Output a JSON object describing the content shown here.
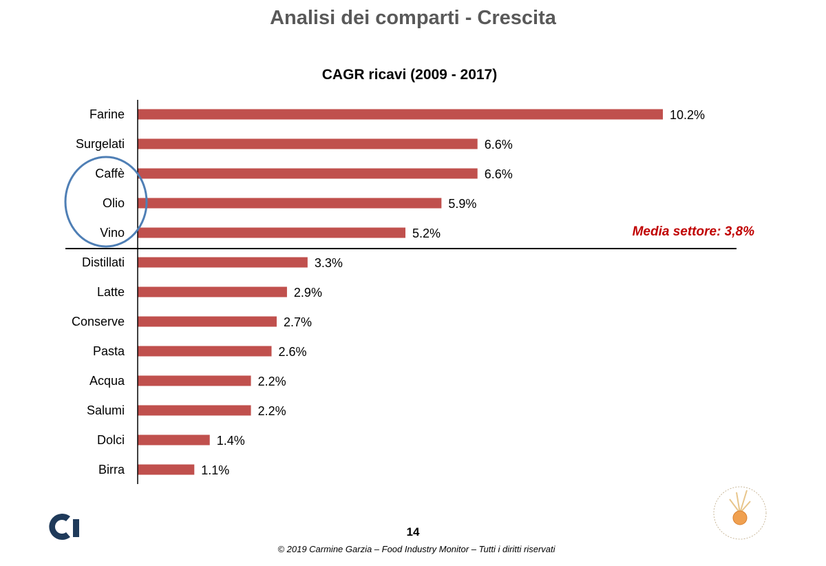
{
  "slide": {
    "title": "Analisi dei comparti - Crescita",
    "page_number": "14",
    "footer": "© 2019 Carmine Garzia – Food Industry Monitor – Tutti i diritti riservati",
    "annotation": "Media settore: 3,8%"
  },
  "colors": {
    "bar": "#c0504d",
    "annotation": "#c00000",
    "highlight_circle": "#4f7fb5",
    "logo_left": "#1f3a5a"
  },
  "chart_data": {
    "type": "bar",
    "orientation": "horizontal",
    "title": "CAGR ricavi (2009 - 2017)",
    "categories": [
      "Farine",
      "Surgelati",
      "Caffè",
      "Olio",
      "Vino",
      "Distillati",
      "Latte",
      "Conserve",
      "Pasta",
      "Acqua",
      "Salumi",
      "Dolci",
      "Birra"
    ],
    "values": [
      10.2,
      6.6,
      6.6,
      5.9,
      5.2,
      3.3,
      2.9,
      2.7,
      2.6,
      2.2,
      2.2,
      1.4,
      1.1
    ],
    "labels": [
      "10.2%",
      "6.6%",
      "6.6%",
      "5.9%",
      "5.2%",
      "3.3%",
      "2.9%",
      "2.7%",
      "2.6%",
      "2.2%",
      "2.2%",
      "1.4%",
      "1.1%"
    ],
    "unit": "%",
    "xlim": [
      0,
      10.2
    ],
    "grid": false,
    "reference_line": {
      "value": 3.8,
      "description": "divides categories above/below sector average"
    },
    "highlighted": [
      "Caffè",
      "Olio",
      "Vino"
    ]
  }
}
